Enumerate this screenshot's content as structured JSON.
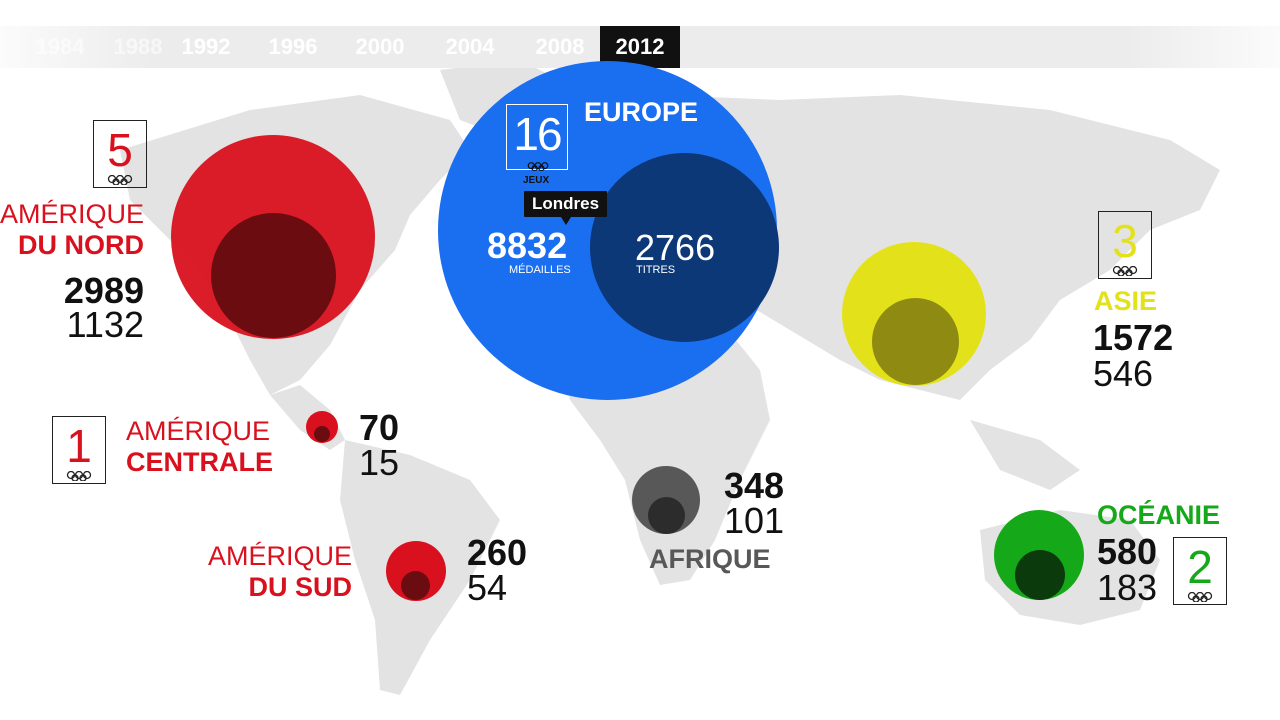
{
  "colors": {
    "americas": "#d9101d",
    "americas_dark": "#6b0c10",
    "europe": "#1a6ef0",
    "europe_dark": "#0d3878",
    "asia": "#e3e21a",
    "asia_dark": "#8f8b12",
    "africa": "#585858",
    "africa_dark": "#2c2c2c",
    "oceania": "#15a819",
    "oceania_dark": "#0b3b0c",
    "map": "#e3e3e3"
  },
  "timeline": {
    "years": [
      "1984",
      "1988",
      "1992",
      "1996",
      "2000",
      "2004",
      "2008",
      "2012"
    ],
    "selected": "2012"
  },
  "europe": {
    "name": "EUROPE",
    "games": "16",
    "games_label": "JEUX",
    "city": "Londres",
    "medals": "8832",
    "medals_label": "MÉDAILLES",
    "titles": "2766",
    "titles_label": "TITRES"
  },
  "north_america": {
    "games": "5",
    "name_line1": "AMÉRIQUE",
    "name_line2": "DU NORD",
    "medals": "2989",
    "titles": "1132"
  },
  "central_america": {
    "games": "1",
    "name_line1": "AMÉRIQUE",
    "name_line2": "CENTRALE",
    "medals": "70",
    "titles": "15"
  },
  "south_america": {
    "name_line1": "AMÉRIQUE",
    "name_line2": "DU SUD",
    "medals": "260",
    "titles": "54"
  },
  "africa": {
    "name": "AFRIQUE",
    "medals": "348",
    "titles": "101"
  },
  "asia": {
    "games": "3",
    "name": "ASIE",
    "medals": "1572",
    "titles": "546"
  },
  "oceania": {
    "games": "2",
    "name": "OCÉANIE",
    "medals": "580",
    "titles": "183"
  }
}
